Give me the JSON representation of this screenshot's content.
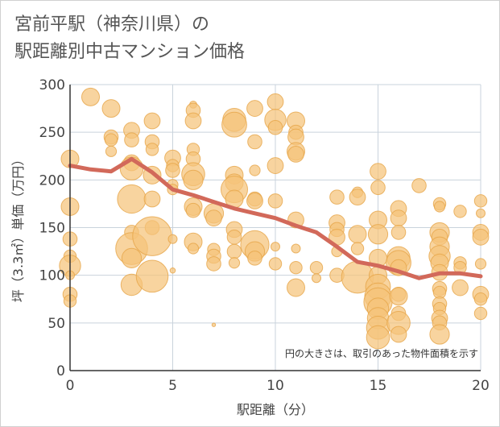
{
  "title_line1": "宮前平駅（神奈川県）の",
  "title_line2": "駅距離別中古マンション価格",
  "chart_data": {
    "type": "scatter",
    "xlabel": "駅距離（分）",
    "ylabel": "坪（3.3㎡）単価（万円）",
    "note": "円の大きさは、取引のあった物件面積を示す",
    "xlim": [
      0,
      20
    ],
    "ylim": [
      0,
      300
    ],
    "xticks": [
      0,
      5,
      10,
      15,
      20
    ],
    "yticks": [
      0,
      50,
      100,
      150,
      200,
      250,
      300
    ],
    "grid": true,
    "colors": {
      "bubble_fill": "#f5c47a",
      "bubble_stroke": "#e6a548",
      "trend_line": "#d2695a"
    },
    "trend_line": {
      "x": [
        0,
        1,
        2,
        3,
        4,
        5,
        6,
        7,
        8,
        9,
        10,
        11,
        12,
        13,
        14,
        15,
        16,
        17,
        18,
        19,
        20
      ],
      "y": [
        215,
        211,
        209,
        222,
        208,
        190,
        184,
        177,
        170,
        165,
        160,
        152,
        145,
        130,
        114,
        110,
        104,
        97,
        102,
        102,
        99
      ]
    },
    "bubbles": [
      {
        "x": 0,
        "y": 222,
        "s": 1.0
      },
      {
        "x": 0,
        "y": 172,
        "s": 1.0
      },
      {
        "x": 0,
        "y": 138,
        "s": 0.8
      },
      {
        "x": 0,
        "y": 120,
        "s": 0.7
      },
      {
        "x": 0,
        "y": 110,
        "s": 1.2
      },
      {
        "x": 0,
        "y": 100,
        "s": 0.5
      },
      {
        "x": 0,
        "y": 80,
        "s": 0.8
      },
      {
        "x": 0,
        "y": 73,
        "s": 0.7
      },
      {
        "x": 1,
        "y": 287,
        "s": 1.0
      },
      {
        "x": 2,
        "y": 275,
        "s": 1.0
      },
      {
        "x": 2,
        "y": 245,
        "s": 0.8
      },
      {
        "x": 2,
        "y": 242,
        "s": 0.7
      },
      {
        "x": 2,
        "y": 230,
        "s": 0.6
      },
      {
        "x": 3,
        "y": 252,
        "s": 0.9
      },
      {
        "x": 3,
        "y": 242,
        "s": 0.8
      },
      {
        "x": 3,
        "y": 218,
        "s": 0.9
      },
      {
        "x": 3,
        "y": 212,
        "s": 1.3
      },
      {
        "x": 3,
        "y": 180,
        "s": 1.6
      },
      {
        "x": 3,
        "y": 145,
        "s": 0.8
      },
      {
        "x": 3,
        "y": 128,
        "s": 1.8
      },
      {
        "x": 3,
        "y": 118,
        "s": 1.1
      },
      {
        "x": 3,
        "y": 90,
        "s": 1.2
      },
      {
        "x": 4,
        "y": 262,
        "s": 0.9
      },
      {
        "x": 4,
        "y": 240,
        "s": 0.8
      },
      {
        "x": 4,
        "y": 232,
        "s": 0.7
      },
      {
        "x": 4,
        "y": 205,
        "s": 1.0
      },
      {
        "x": 4,
        "y": 180,
        "s": 0.9
      },
      {
        "x": 4,
        "y": 150,
        "s": 0.8
      },
      {
        "x": 4,
        "y": 141,
        "s": 2.2
      },
      {
        "x": 4,
        "y": 99,
        "s": 1.8
      },
      {
        "x": 5,
        "y": 223,
        "s": 0.9
      },
      {
        "x": 5,
        "y": 215,
        "s": 0.7
      },
      {
        "x": 5,
        "y": 210,
        "s": 0.8
      },
      {
        "x": 5,
        "y": 195,
        "s": 0.6
      },
      {
        "x": 5,
        "y": 190,
        "s": 0.6
      },
      {
        "x": 5,
        "y": 138,
        "s": 0.5
      },
      {
        "x": 5,
        "y": 105,
        "s": 0.3
      },
      {
        "x": 6,
        "y": 279,
        "s": 0.4
      },
      {
        "x": 6,
        "y": 273,
        "s": 0.8
      },
      {
        "x": 6,
        "y": 262,
        "s": 0.9
      },
      {
        "x": 6,
        "y": 232,
        "s": 0.7
      },
      {
        "x": 6,
        "y": 222,
        "s": 0.8
      },
      {
        "x": 6,
        "y": 206,
        "s": 1.3
      },
      {
        "x": 6,
        "y": 200,
        "s": 1.1
      },
      {
        "x": 6,
        "y": 172,
        "s": 1.0
      },
      {
        "x": 6,
        "y": 168,
        "s": 0.8
      },
      {
        "x": 6,
        "y": 135,
        "s": 1.0
      },
      {
        "x": 6,
        "y": 128,
        "s": 0.6
      },
      {
        "x": 7,
        "y": 165,
        "s": 1.1
      },
      {
        "x": 7,
        "y": 160,
        "s": 0.9
      },
      {
        "x": 7,
        "y": 127,
        "s": 0.7
      },
      {
        "x": 7,
        "y": 120,
        "s": 0.8
      },
      {
        "x": 7,
        "y": 112,
        "s": 0.8
      },
      {
        "x": 7,
        "y": 48,
        "s": 0.2
      },
      {
        "x": 8,
        "y": 263,
        "s": 1.3
      },
      {
        "x": 8,
        "y": 258,
        "s": 1.4
      },
      {
        "x": 8,
        "y": 205,
        "s": 1.0
      },
      {
        "x": 8,
        "y": 197,
        "s": 1.0
      },
      {
        "x": 8,
        "y": 190,
        "s": 1.5
      },
      {
        "x": 8,
        "y": 180,
        "s": 1.0
      },
      {
        "x": 8,
        "y": 148,
        "s": 0.9
      },
      {
        "x": 8,
        "y": 140,
        "s": 0.8
      },
      {
        "x": 8,
        "y": 125,
        "s": 0.8
      },
      {
        "x": 8,
        "y": 113,
        "s": 0.6
      },
      {
        "x": 9,
        "y": 275,
        "s": 0.9
      },
      {
        "x": 9,
        "y": 240,
        "s": 0.8
      },
      {
        "x": 9,
        "y": 210,
        "s": 0.6
      },
      {
        "x": 9,
        "y": 180,
        "s": 0.8
      },
      {
        "x": 9,
        "y": 178,
        "s": 0.9
      },
      {
        "x": 9,
        "y": 132,
        "s": 1.6
      },
      {
        "x": 9,
        "y": 125,
        "s": 1.1
      },
      {
        "x": 9,
        "y": 118,
        "s": 0.8
      },
      {
        "x": 10,
        "y": 282,
        "s": 0.9
      },
      {
        "x": 10,
        "y": 263,
        "s": 1.2
      },
      {
        "x": 10,
        "y": 255,
        "s": 0.8
      },
      {
        "x": 10,
        "y": 215,
        "s": 0.9
      },
      {
        "x": 10,
        "y": 178,
        "s": 0.8
      },
      {
        "x": 10,
        "y": 130,
        "s": 0.5
      },
      {
        "x": 10,
        "y": 112,
        "s": 0.7
      },
      {
        "x": 11,
        "y": 262,
        "s": 1.0
      },
      {
        "x": 11,
        "y": 250,
        "s": 0.8
      },
      {
        "x": 11,
        "y": 245,
        "s": 0.9
      },
      {
        "x": 11,
        "y": 230,
        "s": 1.0
      },
      {
        "x": 11,
        "y": 227,
        "s": 0.9
      },
      {
        "x": 11,
        "y": 158,
        "s": 0.9
      },
      {
        "x": 11,
        "y": 128,
        "s": 0.5
      },
      {
        "x": 11,
        "y": 108,
        "s": 0.7
      },
      {
        "x": 11,
        "y": 87,
        "s": 1.0
      },
      {
        "x": 12,
        "y": 108,
        "s": 0.7
      },
      {
        "x": 12,
        "y": 97,
        "s": 0.5
      },
      {
        "x": 13,
        "y": 182,
        "s": 0.8
      },
      {
        "x": 13,
        "y": 155,
        "s": 0.9
      },
      {
        "x": 13,
        "y": 148,
        "s": 0.8
      },
      {
        "x": 13,
        "y": 140,
        "s": 0.9
      },
      {
        "x": 13,
        "y": 125,
        "s": 0.6
      },
      {
        "x": 13,
        "y": 100,
        "s": 0.8
      },
      {
        "x": 14,
        "y": 187,
        "s": 0.6
      },
      {
        "x": 14,
        "y": 182,
        "s": 0.9
      },
      {
        "x": 14,
        "y": 143,
        "s": 1.0
      },
      {
        "x": 14,
        "y": 128,
        "s": 0.7
      },
      {
        "x": 14,
        "y": 98,
        "s": 1.8
      },
      {
        "x": 15,
        "y": 209,
        "s": 0.9
      },
      {
        "x": 15,
        "y": 192,
        "s": 0.8
      },
      {
        "x": 15,
        "y": 158,
        "s": 1.0
      },
      {
        "x": 15,
        "y": 143,
        "s": 1.1
      },
      {
        "x": 15,
        "y": 118,
        "s": 1.0
      },
      {
        "x": 15,
        "y": 100,
        "s": 1.0
      },
      {
        "x": 15,
        "y": 88,
        "s": 1.4
      },
      {
        "x": 15,
        "y": 78,
        "s": 1.5
      },
      {
        "x": 15,
        "y": 72,
        "s": 1.6
      },
      {
        "x": 15,
        "y": 65,
        "s": 1.2
      },
      {
        "x": 15,
        "y": 55,
        "s": 1.2
      },
      {
        "x": 15,
        "y": 45,
        "s": 1.3
      },
      {
        "x": 15,
        "y": 35,
        "s": 1.3
      },
      {
        "x": 16,
        "y": 170,
        "s": 0.9
      },
      {
        "x": 16,
        "y": 160,
        "s": 0.9
      },
      {
        "x": 16,
        "y": 145,
        "s": 0.8
      },
      {
        "x": 16,
        "y": 118,
        "s": 1.3
      },
      {
        "x": 16,
        "y": 113,
        "s": 1.4
      },
      {
        "x": 16,
        "y": 108,
        "s": 0.9
      },
      {
        "x": 16,
        "y": 80,
        "s": 0.8
      },
      {
        "x": 16,
        "y": 78,
        "s": 1.0
      },
      {
        "x": 16,
        "y": 60,
        "s": 0.8
      },
      {
        "x": 16,
        "y": 50,
        "s": 1.3
      },
      {
        "x": 16,
        "y": 38,
        "s": 0.9
      },
      {
        "x": 17,
        "y": 194,
        "s": 0.8
      },
      {
        "x": 18,
        "y": 175,
        "s": 0.7
      },
      {
        "x": 18,
        "y": 172,
        "s": 0.6
      },
      {
        "x": 18,
        "y": 145,
        "s": 1.1
      },
      {
        "x": 18,
        "y": 140,
        "s": 0.9
      },
      {
        "x": 18,
        "y": 130,
        "s": 1.1
      },
      {
        "x": 18,
        "y": 120,
        "s": 1.2
      },
      {
        "x": 18,
        "y": 113,
        "s": 1.0
      },
      {
        "x": 18,
        "y": 103,
        "s": 0.9
      },
      {
        "x": 18,
        "y": 86,
        "s": 0.8
      },
      {
        "x": 18,
        "y": 82,
        "s": 0.7
      },
      {
        "x": 18,
        "y": 70,
        "s": 0.8
      },
      {
        "x": 18,
        "y": 65,
        "s": 0.7
      },
      {
        "x": 18,
        "y": 55,
        "s": 0.9
      },
      {
        "x": 18,
        "y": 50,
        "s": 0.8
      },
      {
        "x": 18,
        "y": 38,
        "s": 1.1
      },
      {
        "x": 19,
        "y": 167,
        "s": 0.7
      },
      {
        "x": 19,
        "y": 113,
        "s": 0.7
      },
      {
        "x": 19,
        "y": 108,
        "s": 0.7
      },
      {
        "x": 19,
        "y": 87,
        "s": 0.9
      },
      {
        "x": 20,
        "y": 178,
        "s": 0.7
      },
      {
        "x": 20,
        "y": 165,
        "s": 0.5
      },
      {
        "x": 20,
        "y": 145,
        "s": 0.9
      },
      {
        "x": 20,
        "y": 140,
        "s": 0.9
      },
      {
        "x": 20,
        "y": 112,
        "s": 0.6
      },
      {
        "x": 20,
        "y": 80,
        "s": 0.9
      },
      {
        "x": 20,
        "y": 75,
        "s": 0.7
      },
      {
        "x": 20,
        "y": 60,
        "s": 0.7
      }
    ]
  }
}
